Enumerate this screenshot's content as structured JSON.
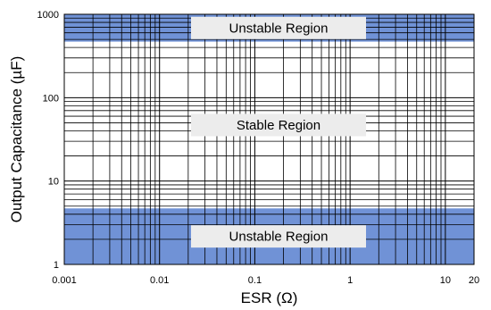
{
  "chart_data": {
    "type": "area",
    "xlabel": "ESR (Ω)",
    "ylabel": "Output Capacitance (µF)",
    "xscale": "log",
    "yscale": "log",
    "xlim": [
      0.001,
      20
    ],
    "ylim": [
      1,
      1000
    ],
    "grid": true,
    "x_ticks": [
      {
        "value": 0.001,
        "label": "0.001"
      },
      {
        "value": 0.01,
        "label": "0.01"
      },
      {
        "value": 0.1,
        "label": "0.1"
      },
      {
        "value": 1,
        "label": "1"
      },
      {
        "value": 10,
        "label": "10"
      },
      {
        "value": 20,
        "label": "20"
      }
    ],
    "y_ticks": [
      {
        "value": 1,
        "label": "1"
      },
      {
        "value": 10,
        "label": "10"
      },
      {
        "value": 100,
        "label": "100"
      },
      {
        "value": 1000,
        "label": "1000"
      }
    ],
    "regions": [
      {
        "label": "Unstable Region",
        "x_range": [
          0.001,
          20
        ],
        "y_range": [
          470,
          1000
        ],
        "shaded": true
      },
      {
        "label": "Stable Region",
        "x_range": [
          0.001,
          20
        ],
        "y_range": [
          4.7,
          470
        ],
        "shaded": false
      },
      {
        "label": "Unstable Region",
        "x_range": [
          0.001,
          20
        ],
        "y_range": [
          1,
          4.7
        ],
        "shaded": true
      }
    ],
    "colors": {
      "unstable_fill": "#7092d6",
      "label_box": "#ececec",
      "grid": "#000000"
    }
  }
}
